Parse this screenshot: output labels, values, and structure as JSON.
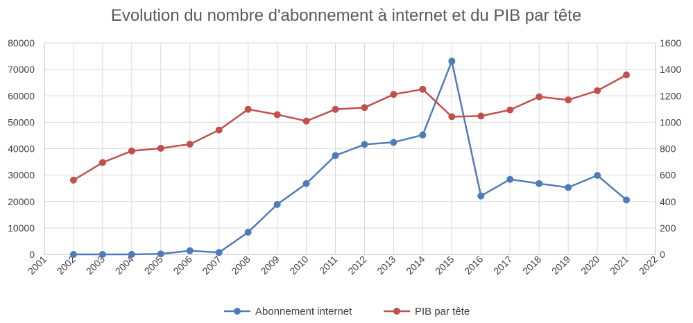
{
  "chart_data": {
    "type": "line",
    "title": "Evolution du nombre d'abonnement à internet et du PIB par tête",
    "x_ticks": [
      "2001",
      "2002",
      "2003",
      "2004",
      "2005",
      "2006",
      "2007",
      "2008",
      "2009",
      "2010",
      "2011",
      "2012",
      "2013",
      "2014",
      "2015",
      "2016",
      "2017",
      "2018",
      "2019",
      "2020",
      "2021",
      "2022"
    ],
    "x": [
      2002,
      2003,
      2004,
      2005,
      2006,
      2007,
      2008,
      2009,
      2010,
      2011,
      2012,
      2013,
      2014,
      2015,
      2016,
      2017,
      2018,
      2019,
      2020,
      2021
    ],
    "xlim": [
      2001,
      2022
    ],
    "y_left": {
      "ylim": [
        0,
        80000
      ],
      "ticks": [
        "0",
        "10000",
        "20000",
        "30000",
        "40000",
        "50000",
        "60000",
        "70000",
        "80000"
      ]
    },
    "y_right": {
      "ylim": [
        0,
        1600
      ],
      "ticks": [
        "0",
        "200",
        "400",
        "600",
        "800",
        "1000",
        "1200",
        "1400",
        "1600"
      ]
    },
    "grid": true,
    "legend_position": "bottom",
    "series": [
      {
        "name": "Abonnement internet",
        "axis": "left",
        "color": "#4f7cb9",
        "values": [
          0,
          0,
          0,
          200,
          1400,
          700,
          8400,
          18900,
          26800,
          37400,
          41600,
          42400,
          45200,
          73100,
          22100,
          28400,
          26800,
          25300,
          29900,
          20600
        ]
      },
      {
        "name": "PIB par tête",
        "axis": "right",
        "color": "#c0504d",
        "values": [
          562,
          695,
          783,
          803,
          834,
          941,
          1098,
          1058,
          1009,
          1098,
          1111,
          1211,
          1250,
          1042,
          1047,
          1093,
          1193,
          1169,
          1239,
          1358
        ]
      }
    ]
  }
}
